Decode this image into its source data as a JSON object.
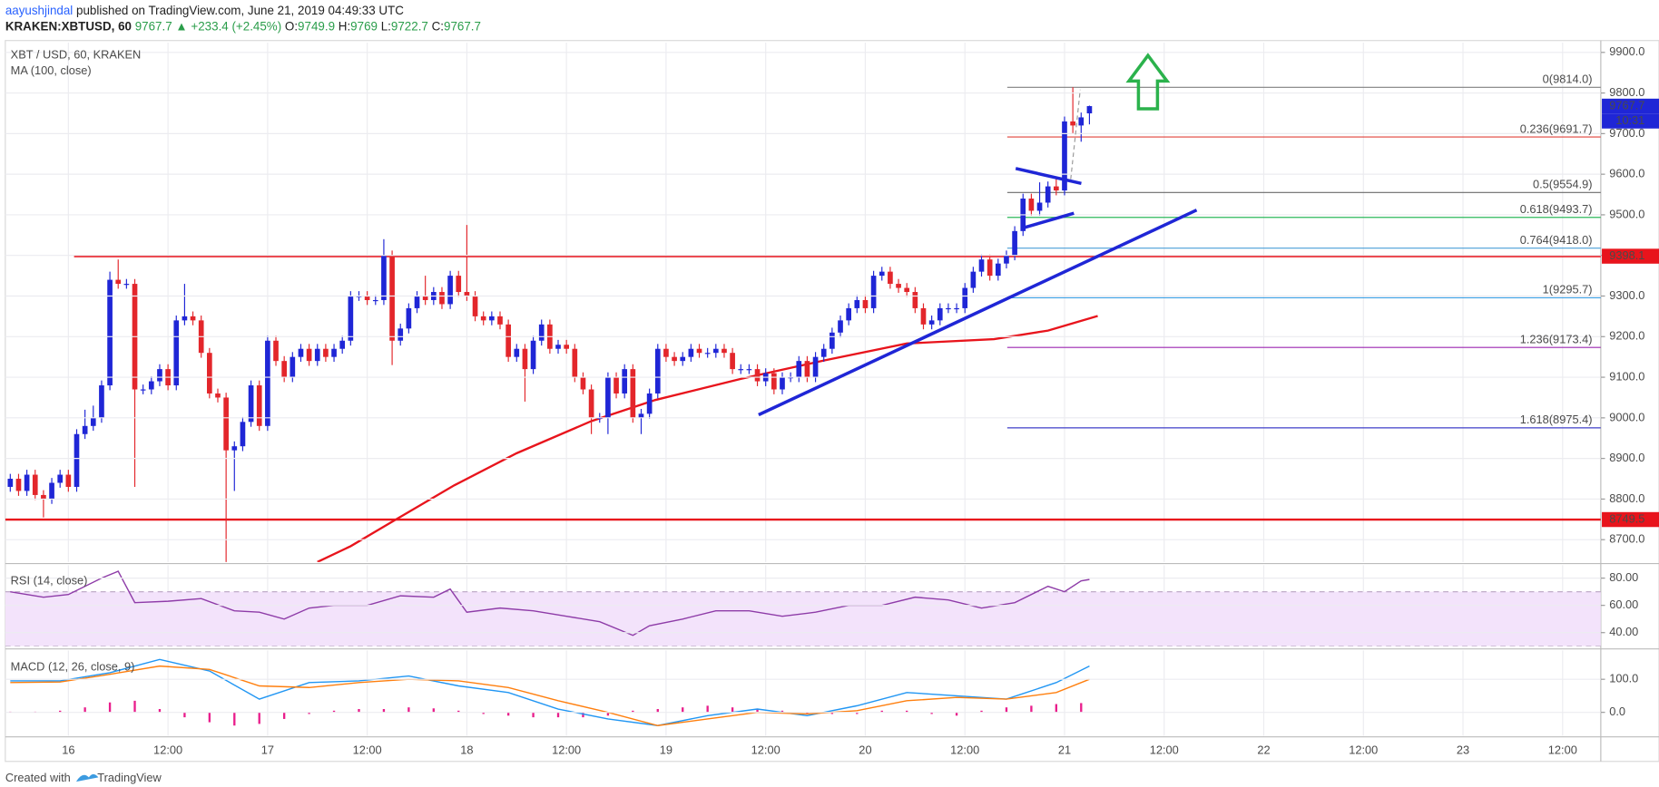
{
  "header": {
    "author": "aayushjindal",
    "published": "published on TradingView.com, June 21, 2019 04:49:33 UTC",
    "symbol": "KRAKEN:XBTUSD, 60",
    "last": "9767.7",
    "change": "▲ +233.4 (+2.45%)",
    "ohlc": [
      {
        "key": "O:",
        "value": "9749.9"
      },
      {
        "key": "H:",
        "value": "9769"
      },
      {
        "key": "L:",
        "value": "9722.7"
      },
      {
        "key": "C:",
        "value": "9767.7"
      }
    ]
  },
  "footer": {
    "created": "Created with",
    "brand": "TradingView"
  },
  "chart_data": [
    {
      "type": "candlestick",
      "title": "XBT / USD, 60, KRAKEN",
      "up_color": "#1f26d6",
      "down_color": "#e3262b",
      "x": [
        -7,
        -6,
        -5,
        -4,
        -3,
        -2,
        -1,
        0,
        1,
        2,
        3,
        4,
        5,
        6,
        7,
        8,
        9,
        10,
        11,
        12,
        13,
        14,
        15,
        16,
        17,
        18,
        19,
        20,
        21,
        22,
        23,
        24,
        25,
        26,
        27,
        28,
        29,
        30,
        31,
        32,
        33,
        34,
        35,
        36,
        37,
        38,
        39,
        40,
        41,
        42,
        43,
        44,
        45,
        46,
        47,
        48,
        49,
        50,
        51,
        52,
        53,
        54,
        55,
        56,
        57,
        58,
        59,
        60,
        61,
        62,
        63,
        64,
        65,
        66,
        67,
        68,
        69,
        70,
        71,
        72,
        73,
        74,
        75,
        76,
        77,
        78,
        79,
        80,
        81,
        82,
        83,
        84,
        85,
        86,
        87,
        88,
        89,
        90,
        91,
        92,
        93,
        94,
        95,
        96,
        97,
        98,
        99,
        100,
        101,
        102,
        103,
        104,
        105,
        106,
        107,
        108,
        109,
        110,
        111,
        112,
        113,
        114,
        115,
        116,
        117,
        118,
        119,
        120,
        121,
        122,
        123
      ],
      "open": [
        8830,
        8850,
        8820,
        8860,
        8810,
        8800,
        8840,
        8860,
        8830,
        8960,
        8980,
        9000,
        9080,
        9340,
        9330,
        9330,
        9070,
        9070,
        9090,
        9120,
        9080,
        9240,
        9250,
        9240,
        9160,
        9060,
        9050,
        8920,
        8930,
        8990,
        9080,
        8980,
        9190,
        9140,
        9100,
        9150,
        9170,
        9140,
        9170,
        9150,
        9170,
        9190,
        9300,
        9300,
        9290,
        9290,
        9400,
        9190,
        9220,
        9270,
        9300,
        9290,
        9310,
        9280,
        9350,
        9310,
        9300,
        9250,
        9240,
        9250,
        9230,
        9150,
        9170,
        9120,
        9190,
        9230,
        9170,
        9180,
        9170,
        9100,
        9070,
        9000,
        9000,
        9100,
        9060,
        9120,
        9000,
        9010,
        9060,
        9170,
        9150,
        9140,
        9150,
        9170,
        9160,
        9160,
        9170,
        9160,
        9120,
        9120,
        9120,
        9090,
        9110,
        9070,
        9100,
        9100,
        9140,
        9100,
        9150,
        9170,
        9210,
        9240,
        9270,
        9290,
        9270,
        9350,
        9360,
        9330,
        9320,
        9310,
        9270,
        9230,
        9240,
        9270,
        9270,
        9270,
        9320,
        9360,
        9390,
        9350,
        9380,
        9400,
        9460,
        9540,
        9510,
        9530,
        9570,
        9560,
        9730,
        9720,
        9749.9
      ],
      "high": [
        8862,
        8862,
        8872,
        8872,
        8822,
        8852,
        8872,
        8872,
        8972,
        9020,
        9030,
        9092,
        9360,
        9390,
        9342,
        9342,
        9082,
        9102,
        9132,
        9132,
        9252,
        9330,
        9262,
        9252,
        9172,
        9072,
        9062,
        8942,
        9002,
        9092,
        9092,
        9202,
        9202,
        9152,
        9162,
        9182,
        9182,
        9182,
        9182,
        9182,
        9202,
        9312,
        9312,
        9312,
        9302,
        9440,
        9412,
        9232,
        9282,
        9312,
        9350,
        9322,
        9322,
        9362,
        9362,
        9475,
        9312,
        9262,
        9262,
        9262,
        9242,
        9182,
        9182,
        9202,
        9242,
        9242,
        9192,
        9192,
        9182,
        9112,
        9082,
        9012,
        9112,
        9112,
        9132,
        9132,
        9022,
        9072,
        9182,
        9182,
        9162,
        9162,
        9182,
        9182,
        9172,
        9182,
        9182,
        9172,
        9132,
        9132,
        9132,
        9122,
        9122,
        9112,
        9112,
        9152,
        9152,
        9162,
        9182,
        9222,
        9252,
        9282,
        9302,
        9302,
        9362,
        9372,
        9372,
        9342,
        9332,
        9322,
        9282,
        9252,
        9282,
        9282,
        9282,
        9332,
        9372,
        9402,
        9402,
        9392,
        9412,
        9472,
        9552,
        9552,
        9580,
        9582,
        9590,
        9742,
        9814,
        9752,
        9769
      ],
      "low": [
        8818,
        8808,
        8808,
        8798,
        8755,
        8788,
        8828,
        8818,
        8818,
        8948,
        8968,
        8988,
        9068,
        9318,
        9318,
        8830,
        9058,
        9058,
        9078,
        9068,
        9068,
        9228,
        9228,
        9148,
        9048,
        9038,
        8640,
        8820,
        8918,
        8978,
        8968,
        8968,
        9128,
        9088,
        9088,
        9138,
        9128,
        9128,
        9138,
        9138,
        9158,
        9178,
        9288,
        9278,
        9278,
        9278,
        9130,
        9178,
        9208,
        9258,
        9278,
        9278,
        9268,
        9268,
        9298,
        9288,
        9238,
        9228,
        9228,
        9218,
        9138,
        9138,
        9040,
        9108,
        9178,
        9158,
        9158,
        9158,
        9088,
        9058,
        8960,
        8988,
        8960,
        9048,
        9048,
        8988,
        8960,
        8998,
        9048,
        9138,
        9128,
        9128,
        9138,
        9148,
        9148,
        9148,
        9148,
        9108,
        9108,
        9108,
        9078,
        9078,
        9058,
        9058,
        9088,
        9088,
        9088,
        9088,
        9138,
        9158,
        9198,
        9228,
        9258,
        9258,
        9258,
        9338,
        9318,
        9308,
        9298,
        9258,
        9218,
        9218,
        9228,
        9258,
        9258,
        9258,
        9308,
        9348,
        9338,
        9338,
        9368,
        9388,
        9448,
        9498,
        9498,
        9518,
        9548,
        9548,
        9700,
        9680,
        9722.7
      ],
      "close": [
        8850,
        8820,
        8860,
        8810,
        8800,
        8840,
        8860,
        8830,
        8960,
        8980,
        9000,
        9080,
        9340,
        9330,
        9330,
        9070,
        9070,
        9090,
        9120,
        9080,
        9240,
        9250,
        9240,
        9160,
        9060,
        9050,
        8920,
        8930,
        8990,
        9080,
        8980,
        9190,
        9140,
        9100,
        9150,
        9170,
        9140,
        9170,
        9150,
        9170,
        9190,
        9300,
        9300,
        9290,
        9290,
        9400,
        9190,
        9220,
        9270,
        9300,
        9290,
        9310,
        9280,
        9350,
        9310,
        9300,
        9250,
        9240,
        9250,
        9230,
        9150,
        9170,
        9120,
        9190,
        9230,
        9170,
        9180,
        9170,
        9100,
        9070,
        9000,
        9000,
        9100,
        9060,
        9120,
        9000,
        9010,
        9060,
        9170,
        9150,
        9140,
        9150,
        9170,
        9160,
        9160,
        9170,
        9160,
        9120,
        9120,
        9120,
        9090,
        9110,
        9070,
        9100,
        9100,
        9140,
        9100,
        9150,
        9170,
        9210,
        9240,
        9270,
        9290,
        9270,
        9350,
        9360,
        9330,
        9320,
        9310,
        9270,
        9230,
        9240,
        9270,
        9270,
        9270,
        9320,
        9360,
        9390,
        9350,
        9380,
        9400,
        9460,
        9540,
        9510,
        9530,
        9570,
        9560,
        9730,
        9720,
        9740,
        9767.7
      ],
      "series": [
        {
          "name": "MA (100, close)",
          "color": "#e8141c",
          "x": [
            30,
            34,
            39.5,
            46.5,
            54,
            63,
            70.7,
            81,
            91,
            101,
            111.5,
            118,
            124
          ],
          "values": [
            8645,
            8684,
            8750,
            8834,
            8913,
            8992,
            9044,
            9096,
            9141,
            9183,
            9194,
            9215,
            9251
          ]
        }
      ],
      "last_price": 9767.7,
      "countdown": "10:31",
      "hlines": [
        {
          "value": 9398.1,
          "color": "#e8141c"
        },
        {
          "value": 8749.5,
          "color": "#e8141c"
        }
      ],
      "fib": [
        {
          "value": 9814.0,
          "label": "0(9814.0)",
          "color": "#808080"
        },
        {
          "value": 9691.7,
          "label": "0.236(9691.7)",
          "color": "#e0403a"
        },
        {
          "value": 9554.9,
          "label": "0.5(9554.9)",
          "color": "#6a6a6a"
        },
        {
          "value": 9493.7,
          "label": "0.618(9493.7)",
          "color": "#2eb85c"
        },
        {
          "value": 9418.0,
          "label": "0.764(9418.0)",
          "color": "#4a9fd8"
        },
        {
          "value": 9295.7,
          "label": "1(9295.7)",
          "color": "#3da1e6"
        },
        {
          "value": 9173.4,
          "label": "1.236(9173.4)",
          "color": "#9c27b0"
        },
        {
          "value": 8975.4,
          "label": "1.618(8975.4)",
          "color": "#3f3fc8"
        }
      ],
      "xlim": [
        -7.6,
        184.6
      ],
      "ylim": [
        8645,
        9924
      ],
      "yticks": [
        {
          "value": 8700,
          "label": "8700.0"
        },
        {
          "value": 8800,
          "label": "8800.0"
        },
        {
          "value": 8900,
          "label": "8900.0"
        },
        {
          "value": 9000,
          "label": "9000.0"
        },
        {
          "value": 9100,
          "label": "9100.0"
        },
        {
          "value": 9200,
          "label": "9200.0"
        },
        {
          "value": 9300,
          "label": "9300.0"
        },
        {
          "value": 9400,
          "label": "9400.0"
        },
        {
          "value": 9500,
          "label": "9500.0"
        },
        {
          "value": 9600,
          "label": "9600.0"
        },
        {
          "value": 9700,
          "label": "9700.0"
        },
        {
          "value": 9800,
          "label": "9800.0"
        },
        {
          "value": 9900,
          "label": "9900.0"
        }
      ],
      "xticks": [
        {
          "value": 0,
          "label": "16"
        },
        {
          "value": 12,
          "label": "12:00"
        },
        {
          "value": 24,
          "label": "17"
        },
        {
          "value": 36,
          "label": "12:00"
        },
        {
          "value": 48,
          "label": "18"
        },
        {
          "value": 60,
          "label": "12:00"
        },
        {
          "value": 72,
          "label": "19"
        },
        {
          "value": 84,
          "label": "12:00"
        },
        {
          "value": 96,
          "label": "20"
        },
        {
          "value": 108,
          "label": "12:00"
        },
        {
          "value": 120,
          "label": "21"
        },
        {
          "value": 132,
          "label": "12:00"
        },
        {
          "value": 144,
          "label": "22"
        },
        {
          "value": 156,
          "label": "12:00"
        },
        {
          "value": 168,
          "label": "23"
        },
        {
          "value": 180,
          "label": "12:00"
        }
      ],
      "grid": true
    },
    {
      "type": "line",
      "title": "RSI (14, close)",
      "band": [
        30,
        70
      ],
      "band_color": "#f3e3fb",
      "series": [
        {
          "name": "RSI",
          "color": "#8e3ca8",
          "x": [
            -7,
            -3,
            0,
            4,
            6,
            8,
            12,
            16,
            20,
            23,
            26,
            29,
            32,
            36,
            40,
            44,
            46,
            48,
            52,
            56,
            60,
            64,
            68,
            70,
            74,
            78,
            82,
            86,
            90,
            94,
            98,
            102,
            106,
            110,
            114,
            118,
            120,
            122,
            123
          ],
          "values": [
            70,
            66,
            68,
            80,
            85,
            62,
            63,
            65,
            56,
            55,
            50,
            58,
            60,
            60,
            67,
            66,
            72,
            55,
            58,
            56,
            52,
            48,
            38,
            45,
            50,
            56,
            56,
            52,
            55,
            60,
            60,
            66,
            64,
            58,
            62,
            74,
            70,
            78,
            79
          ]
        }
      ],
      "ylim": [
        30,
        89.5
      ],
      "yticks": [
        {
          "value": 40,
          "label": "40.00"
        },
        {
          "value": 60,
          "label": "60.00"
        },
        {
          "value": 80,
          "label": "80.00"
        }
      ]
    },
    {
      "type": "macd",
      "title": "MACD (12, 26, close, 9)",
      "series": [
        {
          "name": "MACD",
          "color": "#2196f3",
          "x": [
            -7,
            -1,
            5,
            11,
            17,
            23,
            29,
            35,
            41,
            47,
            53,
            59,
            65,
            71,
            77,
            83,
            89,
            95,
            101,
            107,
            113,
            119,
            123
          ],
          "values": [
            95,
            95,
            120,
            160,
            125,
            40,
            90,
            95,
            110,
            80,
            60,
            10,
            -20,
            -40,
            -10,
            10,
            -10,
            20,
            60,
            50,
            40,
            90,
            140
          ]
        },
        {
          "name": "Signal",
          "color": "#ff7f0e",
          "x": [
            -7,
            -1,
            5,
            11,
            17,
            23,
            29,
            35,
            41,
            47,
            53,
            59,
            65,
            71,
            77,
            83,
            89,
            95,
            101,
            107,
            113,
            119,
            123
          ],
          "values": [
            90,
            92,
            115,
            140,
            130,
            80,
            75,
            90,
            100,
            95,
            75,
            35,
            0,
            -40,
            -20,
            0,
            -5,
            5,
            35,
            45,
            40,
            60,
            100
          ]
        }
      ],
      "histogram": {
        "color": "#e91e8c",
        "x": [
          -7,
          -4,
          -1,
          2,
          5,
          8,
          11,
          14,
          17,
          20,
          23,
          26,
          29,
          32,
          35,
          38,
          41,
          44,
          47,
          50,
          53,
          56,
          59,
          62,
          65,
          68,
          71,
          74,
          77,
          80,
          83,
          86,
          89,
          92,
          95,
          98,
          101,
          104,
          107,
          110,
          113,
          116,
          119,
          122
        ],
        "values": [
          2,
          2,
          5,
          15,
          30,
          35,
          10,
          -15,
          -30,
          -40,
          -35,
          -20,
          -5,
          5,
          10,
          10,
          15,
          12,
          5,
          -5,
          -10,
          -15,
          -15,
          -15,
          -10,
          5,
          10,
          15,
          20,
          15,
          10,
          5,
          -5,
          -5,
          -5,
          5,
          5,
          -5,
          -10,
          5,
          15,
          20,
          25,
          28
        ]
      },
      "ylim": [
        -71,
        187
      ],
      "yticks": [
        {
          "value": 0,
          "label": "0.0"
        },
        {
          "value": 100,
          "label": "100.0"
        }
      ]
    }
  ]
}
